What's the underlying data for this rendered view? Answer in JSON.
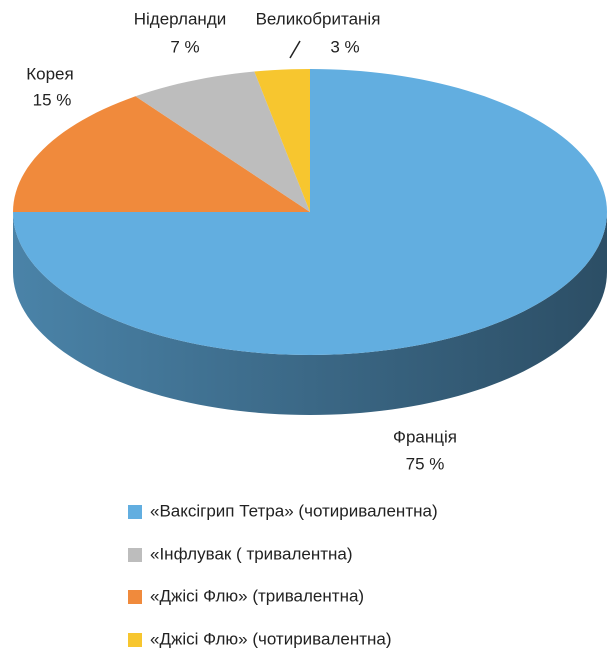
{
  "chart_data": {
    "type": "pie",
    "categories": [
      "Франція",
      "Корея",
      "Нідерланди",
      "Великобританія"
    ],
    "values": [
      75,
      15,
      7,
      3
    ],
    "value_labels": [
      "75 %",
      "15 %",
      "7 %",
      "3 %"
    ],
    "colors": [
      "#62aee0",
      "#f08a3c",
      "#bdbdbd",
      "#f7c62f"
    ],
    "legend": [
      {
        "name": "«Ваксігрип Тетра» (чотиривалентна)",
        "color": "#62aee0"
      },
      {
        "name": "«Інфлувак ( тривалентна)",
        "color": "#bdbdbd"
      },
      {
        "name": "«Джісі Флю» (тривалентна)",
        "color": "#f08a3c"
      },
      {
        "name": "«Джісі Флю» (чотиривалентна)",
        "color": "#f7c62f"
      }
    ]
  }
}
